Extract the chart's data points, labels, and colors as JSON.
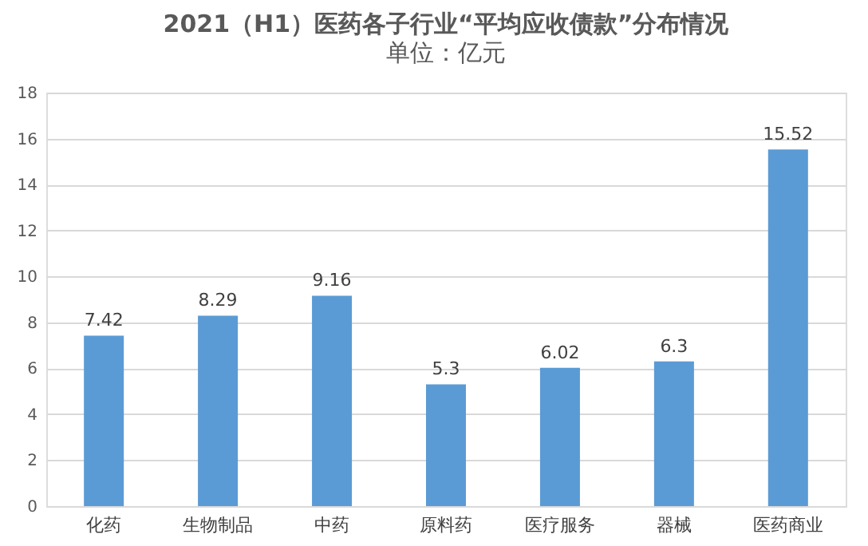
{
  "chart_data": {
    "type": "bar",
    "title": "2021（H1）医药各子行业“平均应收债款”分布情况",
    "subtitle": "单位：亿元",
    "categories": [
      "化药",
      "生物制品",
      "中药",
      "原料药",
      "医疗服务",
      "器械",
      "医药商业"
    ],
    "values": [
      7.42,
      8.29,
      9.16,
      5.3,
      6.02,
      6.3,
      15.52
    ],
    "color": "#5b9bd5",
    "ylim": [
      0,
      18
    ],
    "yticks": [
      0,
      2,
      4,
      6,
      8,
      10,
      12,
      14,
      16,
      18
    ],
    "grid": "y",
    "data_labels": true
  }
}
